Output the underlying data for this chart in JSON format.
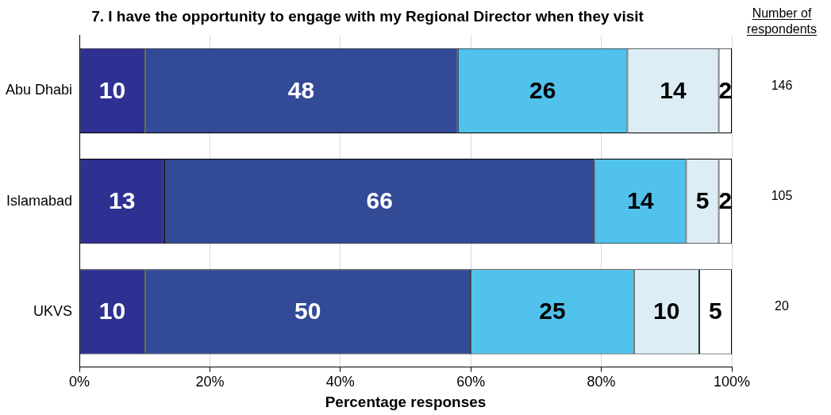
{
  "chart_data": {
    "type": "bar",
    "orientation": "horizontal",
    "stacked": true,
    "title": "7. I have the opportunity to engage with my Regional Director when they visit",
    "xlabel": "Percentage responses",
    "categories": [
      "Abu Dhabi",
      "Islamabad",
      "UKVS"
    ],
    "series": [
      {
        "color": "#2e3192",
        "values": [
          10,
          13,
          10
        ]
      },
      {
        "color": "#334a96",
        "values": [
          48,
          66,
          50
        ]
      },
      {
        "color": "#50c2ec",
        "values": [
          26,
          14,
          25
        ]
      },
      {
        "color": "#dcedf5",
        "values": [
          14,
          5,
          10
        ]
      },
      {
        "color": "#ffffff",
        "values": [
          2,
          2,
          5
        ]
      }
    ],
    "xlim": [
      0,
      100
    ],
    "xticks": [
      {
        "value": 0,
        "label": "0%"
      },
      {
        "value": 20,
        "label": "20%"
      },
      {
        "value": 40,
        "label": "40%"
      },
      {
        "value": 60,
        "label": "60%"
      },
      {
        "value": 80,
        "label": "80%"
      },
      {
        "value": 100,
        "label": "100%"
      }
    ],
    "grid": "x",
    "legend": false,
    "data_labels": true,
    "annotations": [
      "Number of respondents",
      "146",
      "105",
      "20"
    ]
  }
}
